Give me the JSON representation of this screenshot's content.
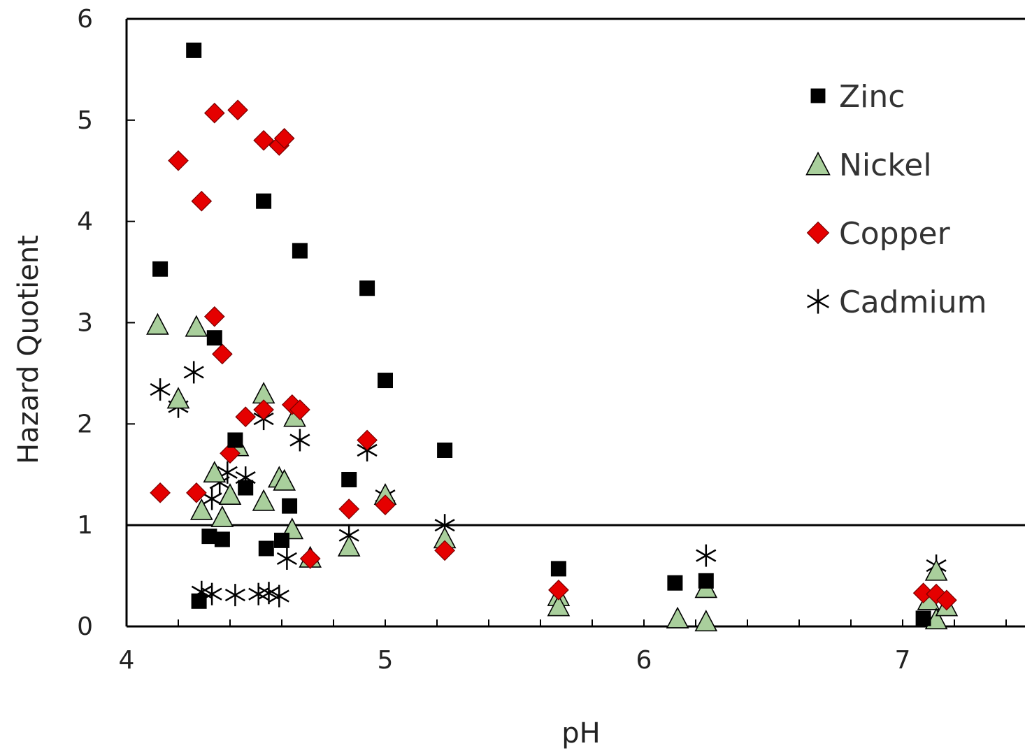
{
  "chart_data": {
    "type": "scatter",
    "title": "",
    "xlabel": "pH",
    "ylabel": "Hazard Quotient",
    "xlim": [
      4,
      7.5
    ],
    "ylim": [
      0,
      6
    ],
    "xticks": [
      "4",
      "5",
      "6",
      "7"
    ],
    "yticks": [
      "0",
      "1",
      "2",
      "3",
      "4",
      "5",
      "6"
    ],
    "grid": false,
    "legend_position": "top-right",
    "reference_line": {
      "y": 1
    },
    "series": [
      {
        "name": "Zinc",
        "marker": "square",
        "color": "#000000",
        "points": [
          [
            4.13,
            3.53
          ],
          [
            4.26,
            5.69
          ],
          [
            4.34,
            2.85
          ],
          [
            4.28,
            0.25
          ],
          [
            4.32,
            0.89
          ],
          [
            4.37,
            0.86
          ],
          [
            4.42,
            1.84
          ],
          [
            4.46,
            1.37
          ],
          [
            4.53,
            4.2
          ],
          [
            4.54,
            0.77
          ],
          [
            4.6,
            0.85
          ],
          [
            4.63,
            1.19
          ],
          [
            4.67,
            3.71
          ],
          [
            4.86,
            1.45
          ],
          [
            4.93,
            3.34
          ],
          [
            5.0,
            2.43
          ],
          [
            5.23,
            1.74
          ],
          [
            5.67,
            0.57
          ],
          [
            6.12,
            0.43
          ],
          [
            6.24,
            0.45
          ],
          [
            7.08,
            0.08
          ]
        ]
      },
      {
        "name": "Nickel",
        "marker": "triangle",
        "color": "#a9cf9c",
        "points": [
          [
            4.12,
            2.98
          ],
          [
            4.2,
            2.25
          ],
          [
            4.27,
            2.96
          ],
          [
            4.29,
            1.15
          ],
          [
            4.34,
            1.52
          ],
          [
            4.37,
            1.08
          ],
          [
            4.4,
            1.3
          ],
          [
            4.43,
            1.78
          ],
          [
            4.53,
            2.3
          ],
          [
            4.53,
            1.24
          ],
          [
            4.59,
            1.47
          ],
          [
            4.61,
            1.44
          ],
          [
            4.64,
            0.96
          ],
          [
            4.65,
            2.07
          ],
          [
            4.71,
            0.68
          ],
          [
            4.86,
            0.79
          ],
          [
            5.0,
            1.3
          ],
          [
            5.23,
            0.87
          ],
          [
            5.67,
            0.3
          ],
          [
            5.67,
            0.2
          ],
          [
            6.13,
            0.08
          ],
          [
            6.24,
            0.38
          ],
          [
            6.24,
            0.05
          ],
          [
            7.1,
            0.26
          ],
          [
            7.13,
            0.55
          ],
          [
            7.13,
            0.07
          ],
          [
            7.17,
            0.2
          ]
        ]
      },
      {
        "name": "Copper",
        "marker": "diamond",
        "color": "#e50000",
        "points": [
          [
            4.13,
            1.32
          ],
          [
            4.2,
            4.6
          ],
          [
            4.27,
            1.32
          ],
          [
            4.29,
            4.2
          ],
          [
            4.34,
            5.07
          ],
          [
            4.34,
            3.06
          ],
          [
            4.37,
            2.69
          ],
          [
            4.4,
            1.71
          ],
          [
            4.43,
            5.1
          ],
          [
            4.46,
            2.07
          ],
          [
            4.53,
            2.14
          ],
          [
            4.53,
            4.8
          ],
          [
            4.59,
            4.75
          ],
          [
            4.61,
            4.82
          ],
          [
            4.64,
            2.19
          ],
          [
            4.67,
            2.14
          ],
          [
            4.71,
            0.67
          ],
          [
            4.86,
            1.16
          ],
          [
            4.93,
            1.84
          ],
          [
            5.0,
            1.2
          ],
          [
            5.23,
            0.75
          ],
          [
            5.67,
            0.36
          ],
          [
            7.08,
            0.33
          ],
          [
            7.13,
            0.32
          ],
          [
            7.17,
            0.26
          ]
        ]
      },
      {
        "name": "Cadmium",
        "marker": "asterisk",
        "color": "#000000",
        "points": [
          [
            4.13,
            2.34
          ],
          [
            4.2,
            2.17
          ],
          [
            4.26,
            2.51
          ],
          [
            4.29,
            0.34
          ],
          [
            4.33,
            1.26
          ],
          [
            4.33,
            0.32
          ],
          [
            4.36,
            1.42
          ],
          [
            4.39,
            1.52
          ],
          [
            4.42,
            0.31
          ],
          [
            4.46,
            1.47
          ],
          [
            4.51,
            0.32
          ],
          [
            4.53,
            2.05
          ],
          [
            4.55,
            0.33
          ],
          [
            4.59,
            0.3
          ],
          [
            4.62,
            0.67
          ],
          [
            4.67,
            1.84
          ],
          [
            4.86,
            0.9
          ],
          [
            4.93,
            1.74
          ],
          [
            5.0,
            1.29
          ],
          [
            5.23,
            1.0
          ],
          [
            6.24,
            0.7
          ],
          [
            7.13,
            0.6
          ]
        ]
      }
    ]
  }
}
